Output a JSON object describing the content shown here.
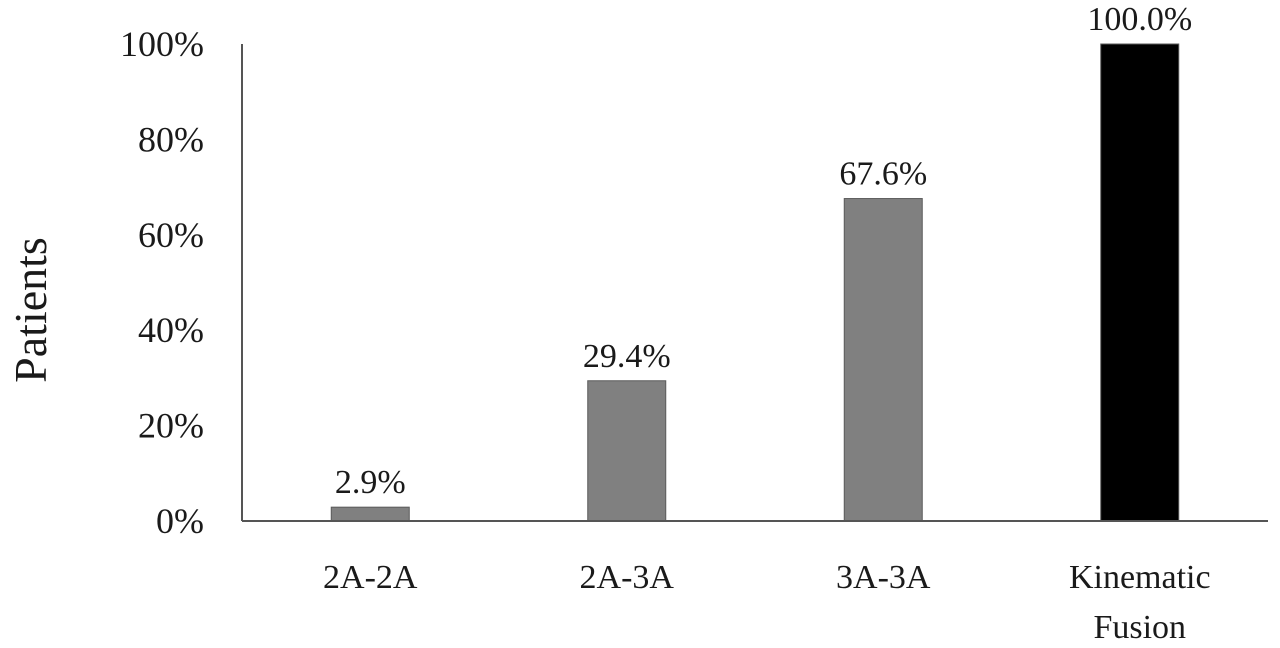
{
  "chart_data": {
    "type": "bar",
    "title": "",
    "xlabel": "",
    "ylabel": "Patients",
    "ylim": [
      0,
      100
    ],
    "yticks": [
      0,
      20,
      40,
      60,
      80,
      100
    ],
    "ytick_labels": [
      "0%",
      "20%",
      "40%",
      "60%",
      "80%",
      "100%"
    ],
    "grid": false,
    "legend": "none",
    "categories": [
      [
        "2A-2A"
      ],
      [
        "2A-3A"
      ],
      [
        "3A-3A"
      ],
      [
        "Kinematic",
        "Fusion"
      ]
    ],
    "values": [
      2.9,
      29.4,
      67.6,
      100.0
    ],
    "data_labels": [
      "2.9%",
      "29.4%",
      "67.6%",
      "100.0%"
    ],
    "bar_colors": [
      "#808080",
      "#808080",
      "#808080",
      "#000000"
    ],
    "axis_color": "#555555"
  }
}
